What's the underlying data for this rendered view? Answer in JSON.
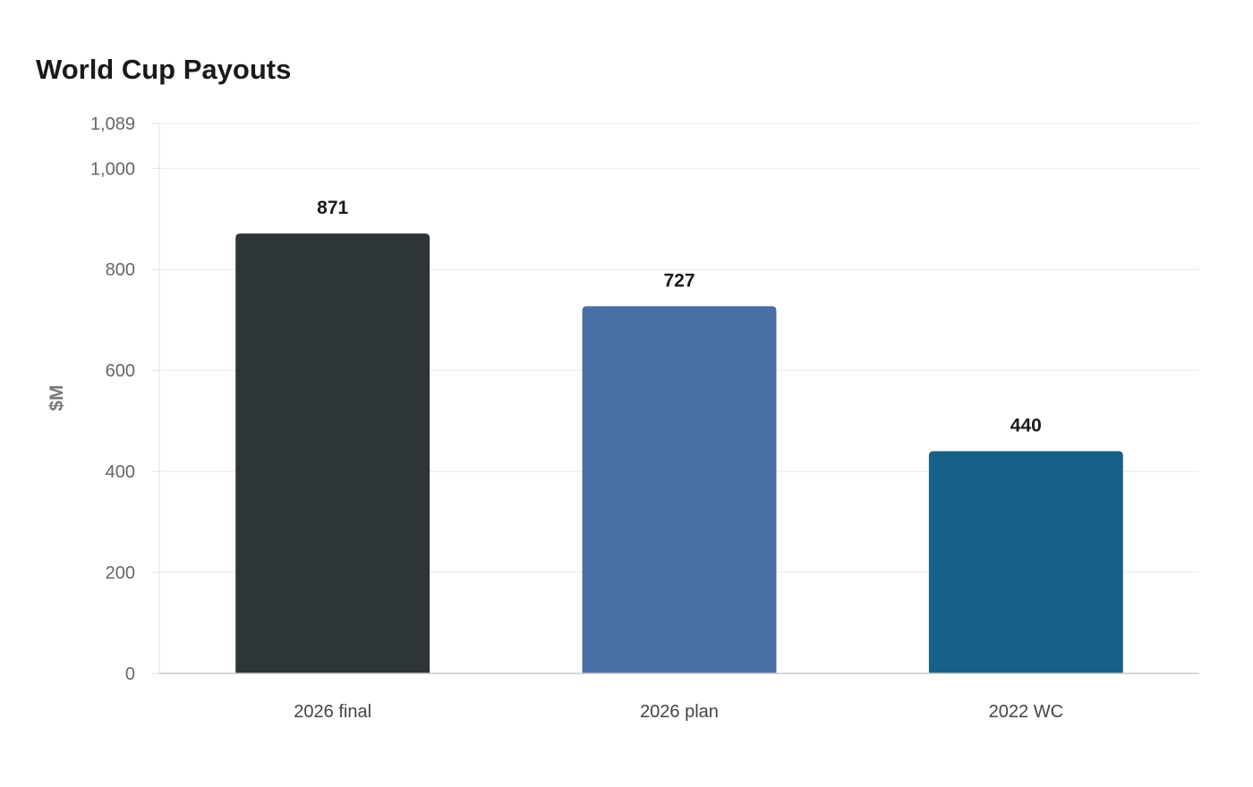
{
  "chart_data": {
    "type": "bar",
    "title": "World Cup Payouts",
    "xlabel": "",
    "ylabel": "$M",
    "categories": [
      "2026 final",
      "2026 plan",
      "2022 WC"
    ],
    "values": [
      871,
      727,
      440
    ],
    "value_labels": [
      "871",
      "727",
      "440"
    ],
    "colors": [
      "#2e3538",
      "#4a6fa5",
      "#176189"
    ],
    "ylim": [
      0,
      1089
    ],
    "yticks": [
      0,
      200,
      400,
      600,
      800,
      1000,
      1089
    ],
    "ytick_labels": [
      "0",
      "200",
      "400",
      "600",
      "800",
      "1,000",
      "1,089"
    ],
    "grid": true,
    "legend": "none"
  }
}
